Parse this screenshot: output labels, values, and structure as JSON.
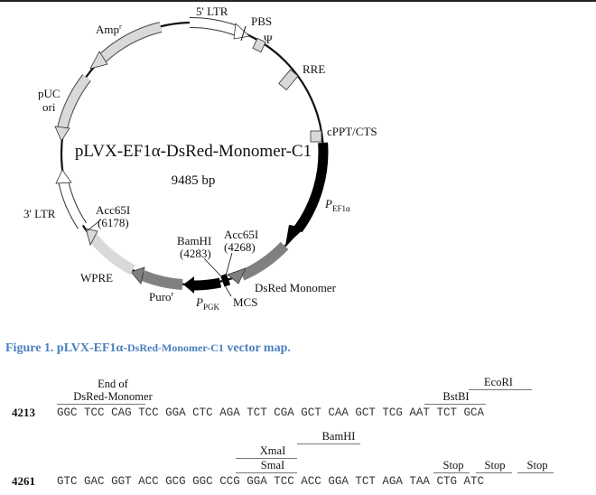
{
  "map": {
    "title": "pLVX-EF1α-DsRed-Monomer-C1",
    "size": "9485 bp",
    "labels": {
      "ltr5": "5' LTR",
      "pbs": "PBS",
      "psi": "Ψ",
      "rre": "RRE",
      "cppt": "cPPT/CTS",
      "pef1a_p": "P",
      "pef1a_sub": "EF1α",
      "dsred": "DsRed Monomer",
      "mcs": "MCS",
      "ppgk_p": "P",
      "ppgk_sub": "PGK",
      "puro": "Puro",
      "puro_sup": "r",
      "wpre": "WPRE",
      "ltr3": "3' LTR",
      "puc_1": "pUC",
      "puc_2": "ori",
      "amp": "Amp",
      "amp_sup": "r",
      "acc_a_name": "Acc65I",
      "acc_a_pos": "(6178)",
      "bam_name": "BamHI",
      "bam_pos": "(4283)",
      "acc_b_name": "Acc65I",
      "acc_b_pos": "(4268)"
    },
    "colors": {
      "gray_feature": "#d9d9d9",
      "dark_feature": "#808080",
      "promoter": "#000000"
    }
  },
  "caption": {
    "prefix": "Figure 1. pLVX-EF1α-",
    "small": "DsRed-Monomer-C1",
    "suffix": " vector map."
  },
  "sequence": {
    "row1": {
      "pos": "4213",
      "codons": [
        "GGC",
        "TCC",
        "CAG",
        "TCC",
        "GGA",
        "CTC",
        "AGA",
        "TCT",
        "CGA",
        "GCT",
        "CAA",
        "GCT",
        "TCG",
        "AAT",
        "TCT",
        "GCA"
      ],
      "end_label_1": "End of",
      "end_label_2": "DsRed-Monomer",
      "ecori": "EcoRI",
      "bstbi": "BstBI"
    },
    "row2": {
      "pos": "4261",
      "codons": [
        "GTC",
        "GAC",
        "GGT",
        "ACC",
        "GCG",
        "GGC",
        "CCG",
        "GGA",
        "TCC",
        "ACC",
        "GGA",
        "TCT",
        "AGA",
        "TAA",
        "CTG",
        "ATC"
      ],
      "bamhi": "BamHI",
      "xmai": "XmaI",
      "smai": "SmaI",
      "stop1": "Stop",
      "stop2": "Stop",
      "stop3": "Stop"
    }
  }
}
